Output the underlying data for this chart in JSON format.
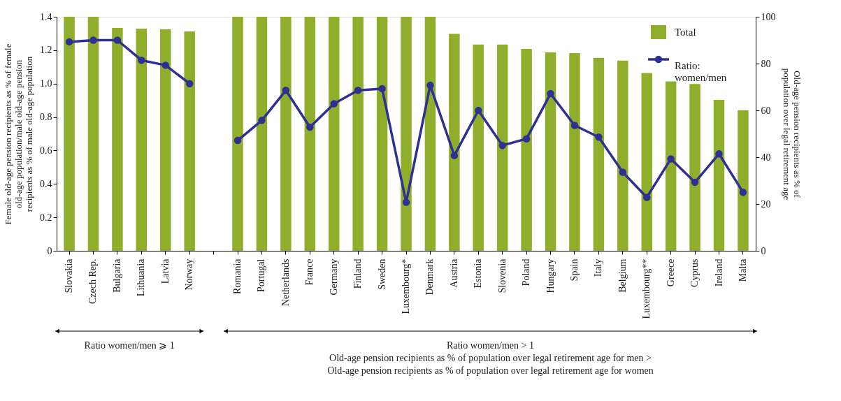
{
  "chart_data": {
    "type": "bar",
    "categories": [
      "Slovakia",
      "Czech Rep.",
      "Bulgaria",
      "Lithuania",
      "Latvia",
      "Norway",
      null,
      "Romania",
      "Portugal",
      "Netherlands",
      "France",
      "Germany",
      "Finland",
      "Sweden",
      "Luxembourg*",
      "Denmark",
      "Austria",
      "Estonia",
      "Slovenia",
      "Poland",
      "Hungary",
      "Spain",
      "Italy",
      "Belgium",
      "Luxembourg**",
      "Greece",
      "Cyprus",
      "Ireland",
      "Malta"
    ],
    "series": [
      {
        "name": "Total",
        "axis": "y2",
        "color": "#8fae2b",
        "values": [
          100,
          100,
          95.2,
          94.9,
          94.6,
          93.7,
          null,
          100,
          100,
          100,
          100,
          100,
          100,
          100,
          100,
          100,
          92.7,
          88.1,
          88.1,
          86.3,
          84.8,
          84.5,
          82.5,
          81.3,
          76.0,
          72.4,
          71.3,
          64.5,
          60.1
        ]
      },
      {
        "name": "Ratio: women/men",
        "type": "line",
        "color": "#2e3192",
        "marker": "circle",
        "values": [
          1.25,
          1.26,
          1.26,
          1.14,
          1.11,
          1.0,
          null,
          0.66,
          0.78,
          0.96,
          0.74,
          0.88,
          0.96,
          0.97,
          0.29,
          0.99,
          0.57,
          0.84,
          0.63,
          0.67,
          0.94,
          0.75,
          0.68,
          0.47,
          0.32,
          0.55,
          0.41,
          0.58,
          0.35
        ]
      }
    ],
    "ylabel": "Female old-age pension recipients as % of female old-age population/male old-age pension recipients as % of male old-age population",
    "y2label": "Old-age pension recipients as % of population over legal retirement age",
    "ylim": [
      0,
      1.4
    ],
    "yticks": [
      0,
      0.2,
      0.4,
      0.6,
      0.8,
      {
        "value": 1,
        "label": "1.0"
      },
      1.2,
      1.4
    ],
    "y2lim": [
      0,
      100
    ],
    "y2ticks": [
      0,
      20,
      40,
      60,
      80,
      100
    ],
    "grid": false,
    "legend": "top right",
    "annotations": [
      "Ratio women/men ⩾ 1",
      "Ratio women/men > 1",
      "Old-age pension recipients as % of population over legal retirement age for men >",
      "Old-age pension recipients as % of population over legal retirement age for women"
    ]
  }
}
